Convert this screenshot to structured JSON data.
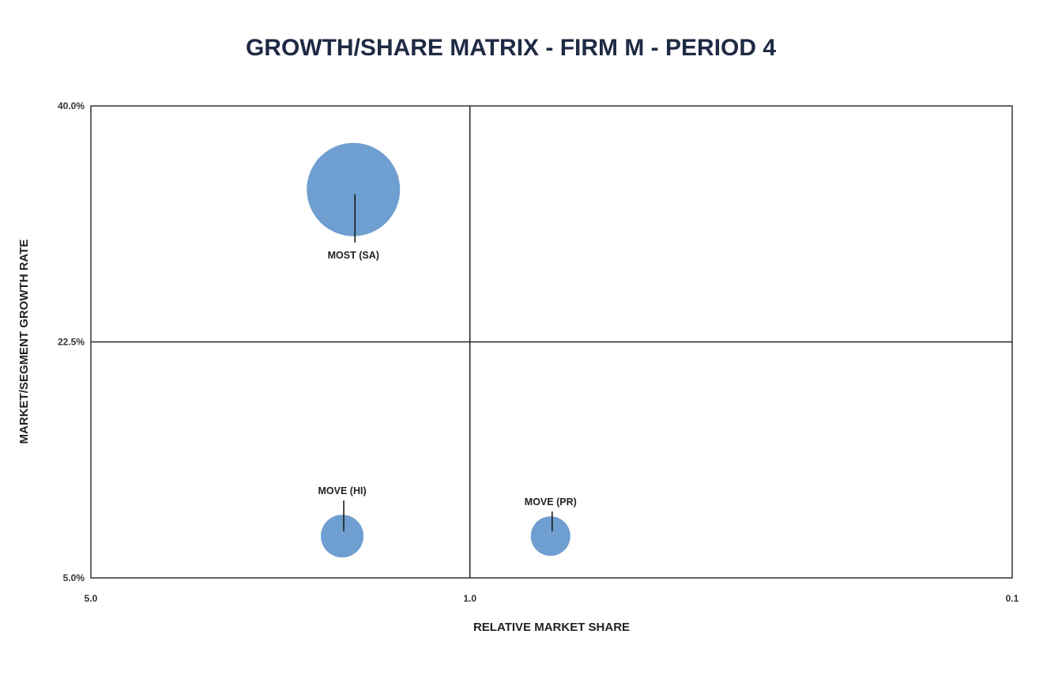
{
  "chart_data": {
    "type": "scatter",
    "subtype": "bubble",
    "title": "GROWTH/SHARE MATRIX - FIRM M - PERIOD 4",
    "xlabel": "RELATIVE MARKET SHARE",
    "ylabel": "MARKET/SEGMENT GROWTH RATE",
    "x_scale": "log",
    "x_reversed": true,
    "xlim": [
      5.0,
      0.1
    ],
    "ylim": [
      5.0,
      40.0
    ],
    "x_ticks": [
      "5.0",
      "1.0",
      "0.1"
    ],
    "x_tick_values": [
      5.0,
      1.0,
      0.1
    ],
    "y_ticks": [
      "5.0%",
      "22.5%",
      "40.0%"
    ],
    "y_tick_values": [
      5.0,
      22.5,
      40.0
    ],
    "x_divider": 1.0,
    "y_divider": 22.5,
    "bubble_color": "#6f9fd0",
    "points": [
      {
        "label": "MOST (SA)",
        "x": 1.64,
        "y": 33.8,
        "size": 100,
        "label_position": "below"
      },
      {
        "label": "MOVE (HI)",
        "x": 1.72,
        "y": 8.1,
        "size": 21,
        "label_position": "above"
      },
      {
        "label": "MOVE (PR)",
        "x": 0.71,
        "y": 8.1,
        "size": 18,
        "label_position": "above"
      }
    ]
  }
}
